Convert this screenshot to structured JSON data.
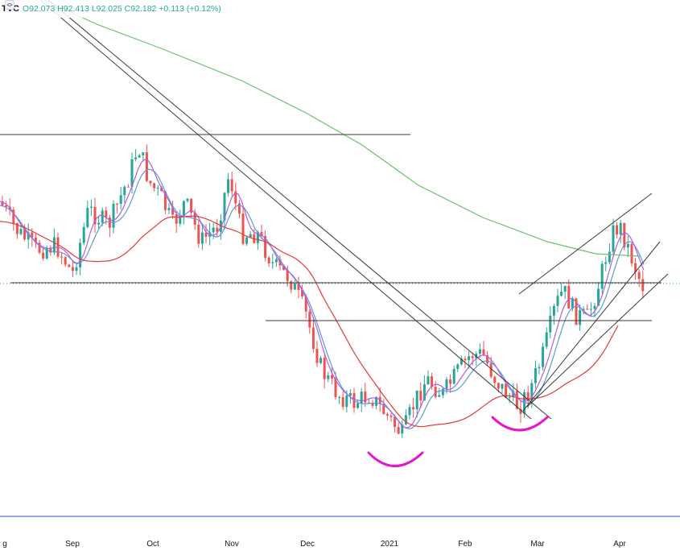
{
  "header": {
    "symbol": "TVC",
    "ohlc_text": "O92.073 H92.413 L92.025 C92.182 +0.113 (+0.12%)"
  },
  "x_axis_labels": [
    "g",
    "Sep",
    "Oct",
    "Nov",
    "Dec",
    "2021",
    "Feb",
    "Mar",
    "Apr"
  ],
  "colors": {
    "up": "#26a69a",
    "down": "#ef5350",
    "ma_blue": "#5b9bd5",
    "ma_purple": "#b25de0",
    "ma_red": "#e5393a",
    "ma_green": "#6cbf6c",
    "trendline": "#3a3a3a",
    "arc": "#e815cf",
    "bottom_line": "#7b83eb",
    "dotted_price": "#26a69a"
  },
  "chart_data": {
    "type": "candlestick",
    "title": "",
    "xlabel": "",
    "ylabel": "",
    "x_ticks": [
      "g",
      "Sep",
      "Oct",
      "Nov",
      "Dec",
      "2021",
      "Feb",
      "Mar",
      "Apr"
    ],
    "grid": false,
    "legend": "none",
    "annotations": [
      "descending trendlines",
      "horizontal resistance lines",
      "rising channel",
      "two rounded-bottom arcs"
    ]
  }
}
